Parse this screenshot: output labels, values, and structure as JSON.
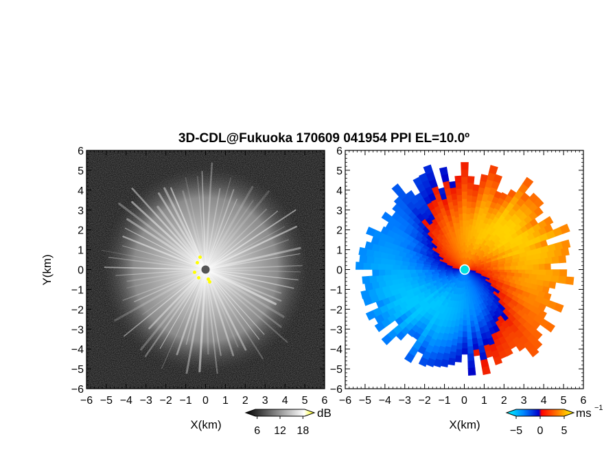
{
  "chart_data": [
    {
      "type": "heatmap",
      "panel": "left",
      "title": "3D-CDL@Fukuoka 170609 041954 PPI EL=10.0º",
      "xlabel": "X(km)",
      "ylabel": "Y(km)",
      "xlim": [
        -6,
        6
      ],
      "ylim": [
        -6,
        6
      ],
      "x_ticks": [
        "−6",
        "−5",
        "−4",
        "−3",
        "−2",
        "−1",
        "0",
        "1",
        "2",
        "3",
        "4",
        "5",
        "6"
      ],
      "y_ticks": [
        "6",
        "5",
        "4",
        "3",
        "2",
        "1",
        "0",
        "−1",
        "−2",
        "−3",
        "−4",
        "−5",
        "−6"
      ],
      "colorbar": {
        "unit": "dB",
        "ticks": [
          "6",
          "12",
          "18"
        ],
        "range": [
          3,
          21
        ],
        "colors": [
          "#000000",
          "#ffffff",
          "#ffff00"
        ]
      },
      "echo_radius_km": 4.8,
      "center_marker_color": "#555555",
      "highlight_color": "#ffff00"
    },
    {
      "type": "heatmap",
      "panel": "right",
      "xlabel": "X(km)",
      "xlim": [
        -6,
        6
      ],
      "ylim": [
        -6,
        6
      ],
      "x_ticks": [
        "−6",
        "−5",
        "−4",
        "−3",
        "−2",
        "−1",
        "0",
        "1",
        "2",
        "3",
        "4",
        "5",
        "6"
      ],
      "y_ticks": [
        "6",
        "5",
        "4",
        "3",
        "2",
        "1",
        "0",
        "−1",
        "−2",
        "−3",
        "−4",
        "−5",
        "−6"
      ],
      "colorbar": {
        "unit": "ms",
        "unit_exponent": "−1",
        "ticks": [
          "−5",
          "0",
          "5"
        ],
        "range": [
          -7,
          7
        ],
        "colors": [
          "#00ffff",
          "#0066ff",
          "#0000cc",
          "#ff0000",
          "#ff6600",
          "#ffff00"
        ]
      },
      "velocity_field": "dipole",
      "echo_radius_km": 4.8,
      "center_marker_color": "#00ffff"
    }
  ]
}
